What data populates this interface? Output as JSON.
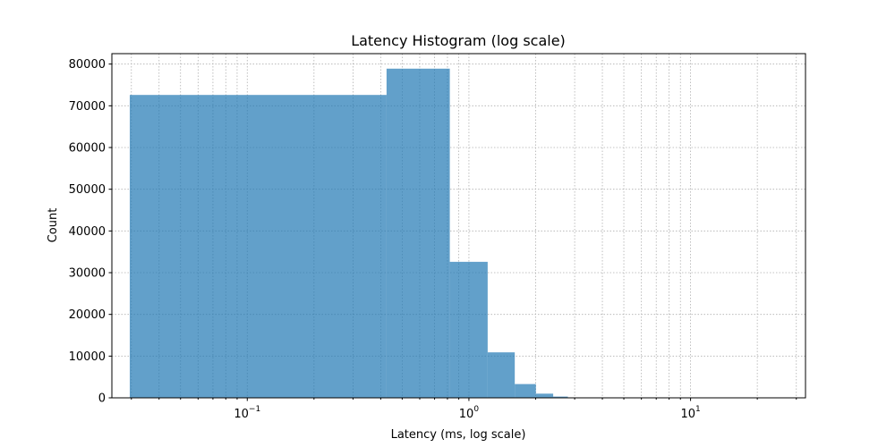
{
  "chart_data": {
    "type": "bar",
    "title": "Latency Histogram (log scale)",
    "xlabel": "Latency (ms, log scale)",
    "ylabel": "Count",
    "x_scale": "log",
    "xlim": [
      0.0245,
      33
    ],
    "ylim": [
      0,
      82500
    ],
    "grid": true,
    "bar_color": "#1f77b4",
    "bar_opacity": 0.7,
    "x_ticks": [
      {
        "base": "10",
        "exp": "−1",
        "value": 0.1
      },
      {
        "base": "10",
        "exp": "0",
        "value": 1
      },
      {
        "base": "10",
        "exp": "1",
        "value": 10
      }
    ],
    "y_ticks": [
      "0",
      "10000",
      "20000",
      "30000",
      "40000",
      "50000",
      "60000",
      "70000",
      "80000"
    ],
    "bins": [
      {
        "x0": 0.0295,
        "x1": 0.425,
        "count": 72600
      },
      {
        "x0": 0.425,
        "x1": 0.82,
        "count": 78900
      },
      {
        "x0": 0.82,
        "x1": 1.215,
        "count": 32600
      },
      {
        "x0": 1.215,
        "x1": 1.61,
        "count": 10900
      },
      {
        "x0": 1.61,
        "x1": 2.005,
        "count": 3300
      },
      {
        "x0": 2.005,
        "x1": 2.4,
        "count": 1000
      },
      {
        "x0": 2.4,
        "x1": 2.795,
        "count": 300
      },
      {
        "x0": 2.795,
        "x1": 3.19,
        "count": 100
      },
      {
        "x0": 3.19,
        "x1": 3.585,
        "count": 30
      },
      {
        "x0": 3.585,
        "x1": 3.98,
        "count": 10
      }
    ]
  }
}
